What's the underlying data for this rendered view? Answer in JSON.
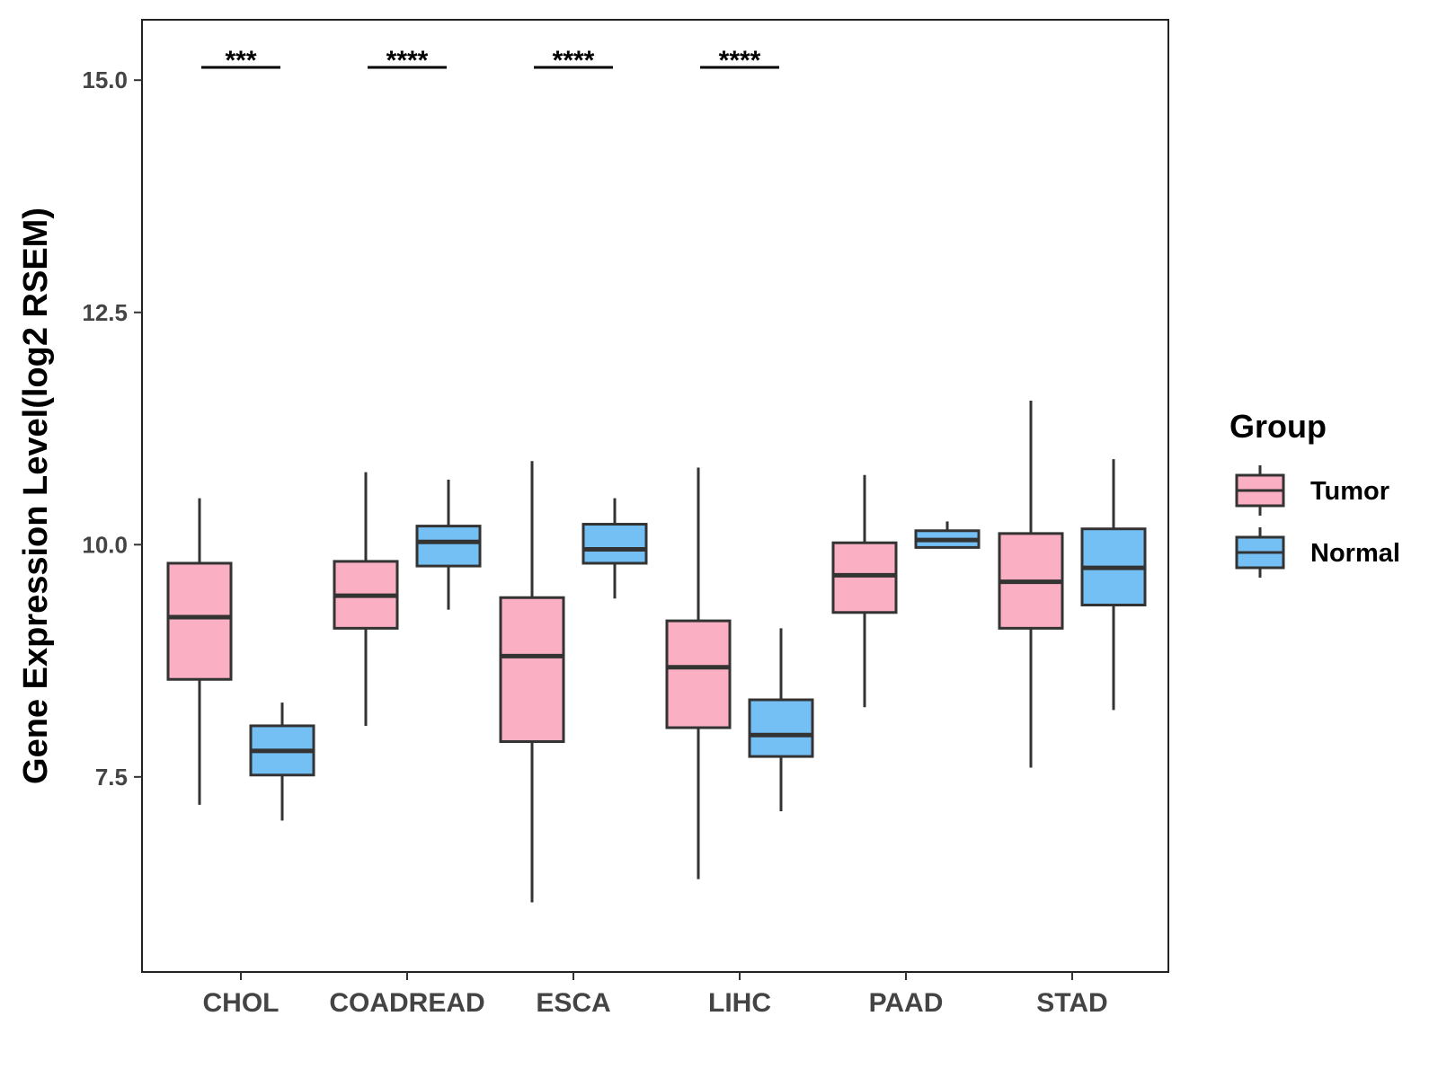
{
  "chart_data": {
    "type": "boxplot",
    "title": "",
    "xlabel": "",
    "ylabel": "Gene Expression Level(log2 RSEM)",
    "ylim": [
      5.4,
      15.65
    ],
    "yticks": [
      7.5,
      10.0,
      12.5,
      15.0
    ],
    "ytick_labels": [
      "7.5",
      "10.0",
      "12.5",
      "15.0"
    ],
    "categories": [
      "CHOL",
      "COADREAD",
      "ESCA",
      "LIHC",
      "PAAD",
      "STAD"
    ],
    "legend": {
      "title": "Group",
      "position": "right"
    },
    "series": [
      {
        "name": "Tumor",
        "color": "#FAAFC3",
        "boxes": [
          {
            "min": 7.2,
            "q1": 8.55,
            "median": 9.22,
            "q3": 9.8,
            "max": 10.5
          },
          {
            "min": 8.05,
            "q1": 9.1,
            "median": 9.45,
            "q3": 9.82,
            "max": 10.78
          },
          {
            "min": 6.15,
            "q1": 7.88,
            "median": 8.8,
            "q3": 9.43,
            "max": 10.9
          },
          {
            "min": 6.4,
            "q1": 8.03,
            "median": 8.68,
            "q3": 9.18,
            "max": 10.83
          },
          {
            "min": 8.25,
            "q1": 9.27,
            "median": 9.67,
            "q3": 10.02,
            "max": 10.75
          },
          {
            "min": 7.6,
            "q1": 9.1,
            "median": 9.6,
            "q3": 10.12,
            "max": 11.55
          }
        ]
      },
      {
        "name": "Normal",
        "color": "#74C0F5",
        "boxes": [
          {
            "min": 7.03,
            "q1": 7.52,
            "median": 7.78,
            "q3": 8.05,
            "max": 8.3
          },
          {
            "min": 9.3,
            "q1": 9.77,
            "median": 10.03,
            "q3": 10.2,
            "max": 10.7
          },
          {
            "min": 9.42,
            "q1": 9.8,
            "median": 9.95,
            "q3": 10.22,
            "max": 10.5
          },
          {
            "min": 7.13,
            "q1": 7.72,
            "median": 7.95,
            "q3": 8.33,
            "max": 9.1
          },
          {
            "min": 9.97,
            "q1": 9.97,
            "median": 10.05,
            "q3": 10.15,
            "max": 10.25
          },
          {
            "min": 8.22,
            "q1": 9.35,
            "median": 9.75,
            "q3": 10.17,
            "max": 10.92
          }
        ]
      }
    ],
    "significance": [
      {
        "category": "CHOL",
        "label": "***"
      },
      {
        "category": "COADREAD",
        "label": "****"
      },
      {
        "category": "ESCA",
        "label": "****"
      },
      {
        "category": "LIHC",
        "label": "****"
      }
    ]
  }
}
